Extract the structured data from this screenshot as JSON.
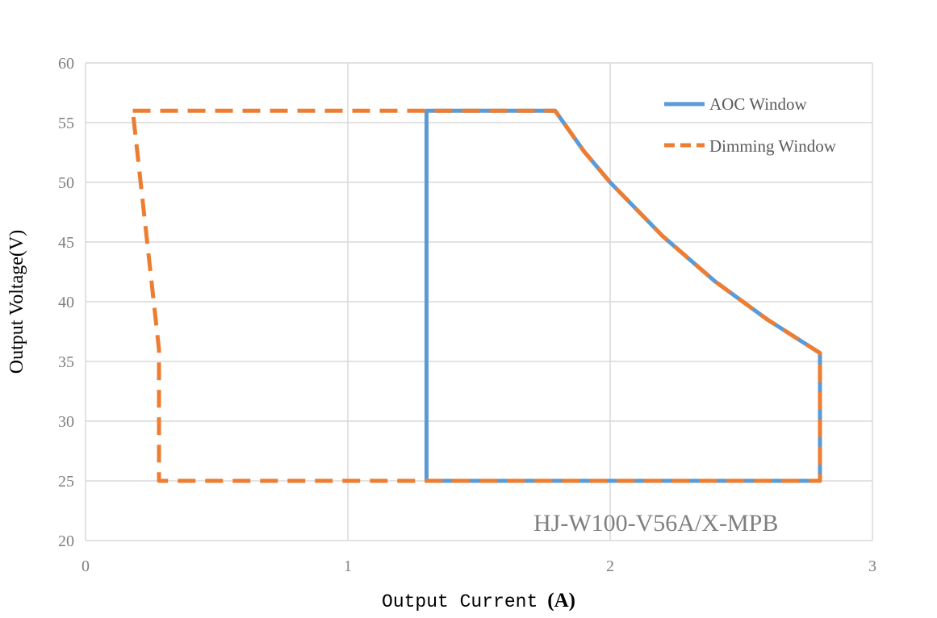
{
  "chart_data": {
    "type": "line",
    "title": "",
    "xlabel": "Output Current",
    "xlabel_unit": "(A)",
    "ylabel": "Output Voltage(V)",
    "xlim": [
      0,
      3
    ],
    "ylim": [
      20,
      60
    ],
    "x_ticks": [
      0,
      1,
      2,
      3
    ],
    "y_ticks": [
      20,
      25,
      30,
      35,
      40,
      45,
      50,
      55,
      60
    ],
    "grid": true,
    "legend_position": "top-right",
    "annotation": "HJ-W100-V56A/X-MPB",
    "series": [
      {
        "name": "AOC Window",
        "color": "#5b9bd5",
        "style": "solid",
        "points": [
          [
            1.3,
            25
          ],
          [
            1.3,
            56
          ],
          [
            1.79,
            56
          ],
          [
            1.9,
            52.6
          ],
          [
            2.0,
            50
          ],
          [
            2.2,
            45.5
          ],
          [
            2.4,
            41.7
          ],
          [
            2.6,
            38.5
          ],
          [
            2.8,
            35.7
          ],
          [
            2.8,
            25
          ],
          [
            1.3,
            25
          ]
        ]
      },
      {
        "name": "Dimming Window",
        "color": "#ed7d31",
        "style": "dashed",
        "points": [
          [
            0.18,
            56
          ],
          [
            1.79,
            56
          ],
          [
            1.9,
            52.6
          ],
          [
            2.0,
            50
          ],
          [
            2.2,
            45.5
          ],
          [
            2.4,
            41.7
          ],
          [
            2.6,
            38.5
          ],
          [
            2.8,
            35.7
          ],
          [
            2.8,
            25
          ],
          [
            0.28,
            25
          ],
          [
            0.28,
            36
          ],
          [
            0.18,
            56
          ]
        ]
      }
    ]
  }
}
